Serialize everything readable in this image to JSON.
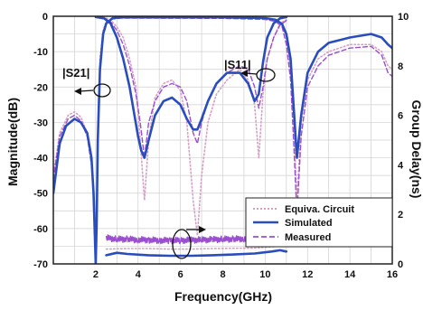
{
  "chart_data": {
    "type": "line",
    "xlabel": "Frequency(GHz)",
    "ylabel": "Magnitude(dB)",
    "y2label": "Group Delay(ns)",
    "xlim": [
      0,
      16
    ],
    "ylim": [
      -70,
      0
    ],
    "y2lim": [
      0,
      10
    ],
    "xticks": [
      2,
      4,
      6,
      8,
      10,
      12,
      14,
      16
    ],
    "yticks": [
      0,
      -10,
      -20,
      -30,
      -40,
      -50,
      -60,
      -70
    ],
    "y2ticks": [
      0,
      2,
      4,
      6,
      8,
      10
    ],
    "grid": true,
    "legend_position": "bottom-right",
    "annotations": [
      "|S21|",
      "|S11|"
    ],
    "series": [
      {
        "name": "Equiva. Circuit",
        "axis": "left",
        "curve": "S21",
        "color": "#d6a0c4",
        "dash": "dot",
        "x": [
          0,
          0.3,
          0.7,
          1.0,
          1.3,
          1.6,
          1.8,
          1.9,
          1.95,
          2.0,
          2.05,
          2.1,
          2.2,
          2.35,
          2.5,
          2.8,
          3.2,
          8,
          10,
          10.5,
          10.8,
          11.0,
          11.2,
          11.35,
          11.5,
          11.7,
          12.0,
          12.5,
          13,
          14,
          15,
          15.5,
          15.8,
          16
        ],
        "y": [
          -45,
          -33,
          -28,
          -27,
          -28.5,
          -33,
          -40,
          -48,
          -58,
          -70,
          -55,
          -32,
          -12,
          -4,
          -1.5,
          -0.5,
          -0.3,
          -0.3,
          -0.5,
          -1.0,
          -2.5,
          -6,
          -15,
          -30,
          -52,
          -30,
          -18,
          -12,
          -10,
          -8,
          -8,
          -10,
          -14,
          -15
        ]
      },
      {
        "name": "Simulated",
        "axis": "left",
        "curve": "S21",
        "color": "#2a4dbd",
        "dash": "solid",
        "x": [
          0,
          0.3,
          0.6,
          1.0,
          1.3,
          1.6,
          1.8,
          1.9,
          1.95,
          2.0,
          2.05,
          2.1,
          2.2,
          2.35,
          2.5,
          2.8,
          3.2,
          8,
          10,
          10.5,
          10.8,
          11.0,
          11.2,
          11.35,
          11.5,
          11.7,
          12.0,
          12.5,
          13,
          14,
          15,
          15.5,
          15.8,
          16
        ],
        "y": [
          -50,
          -36,
          -31,
          -29,
          -30,
          -33,
          -40,
          -50,
          -60,
          -70,
          -58,
          -35,
          -15,
          -5,
          -2,
          -0.5,
          -0.3,
          -0.3,
          -0.5,
          -1.0,
          -2.2,
          -5,
          -12,
          -26,
          -40,
          -28,
          -16,
          -10,
          -7.5,
          -6,
          -5,
          -6,
          -8,
          -9
        ]
      },
      {
        "name": "Measured",
        "axis": "left",
        "curve": "S21",
        "color": "#9b4fd0",
        "dash": "dash",
        "x": [
          0,
          0.3,
          0.7,
          1.0,
          1.3,
          1.6,
          1.8,
          1.9,
          1.95,
          2.0,
          2.05,
          2.1,
          2.2,
          2.35,
          2.5,
          2.8,
          3.2,
          8,
          10,
          10.5,
          10.8,
          11.0,
          11.2,
          11.35,
          11.5,
          11.7,
          12.0,
          12.5,
          13,
          14,
          15,
          15.5,
          15.8,
          16
        ],
        "y": [
          -46,
          -34,
          -29,
          -28,
          -29.5,
          -34,
          -42,
          -52,
          -62,
          -70,
          -58,
          -34,
          -14,
          -5,
          -2,
          -0.8,
          -0.5,
          -0.6,
          -0.9,
          -1.5,
          -3,
          -8,
          -18,
          -36,
          -56,
          -34,
          -20,
          -14,
          -11,
          -9,
          -8.5,
          -11,
          -16,
          -17
        ]
      },
      {
        "name": "Equiva. Circuit",
        "axis": "left",
        "curve": "S11",
        "color": "#d6a0c4",
        "dash": "dot",
        "x": [
          2.0,
          2.4,
          2.7,
          3.0,
          3.3,
          3.6,
          3.9,
          4.1,
          4.3,
          4.5,
          4.8,
          5.2,
          5.6,
          6.0,
          6.3,
          6.6,
          6.8,
          7.0,
          7.3,
          7.7,
          8.2,
          8.8,
          9.2,
          9.5,
          9.7,
          9.9,
          10.1,
          10.4,
          10.7,
          11.0
        ],
        "y": [
          -0.1,
          -0.3,
          -1,
          -3,
          -6,
          -12,
          -20,
          -35,
          -52,
          -35,
          -23,
          -19,
          -18,
          -21,
          -30,
          -52,
          -62,
          -45,
          -30,
          -22,
          -18,
          -15,
          -18,
          -25,
          -40,
          -22,
          -12,
          -6,
          -2,
          -1
        ]
      },
      {
        "name": "Simulated",
        "axis": "left",
        "curve": "S11",
        "color": "#2a4dbd",
        "dash": "solid",
        "x": [
          2.0,
          2.4,
          2.7,
          3.0,
          3.3,
          3.6,
          3.8,
          4.0,
          4.15,
          4.3,
          4.5,
          4.8,
          5.2,
          5.6,
          6.0,
          6.3,
          6.6,
          6.8,
          7.0,
          7.3,
          7.7,
          8.2,
          8.8,
          9.2,
          9.5,
          9.7,
          9.9,
          10.1,
          10.4,
          10.7,
          11.0
        ],
        "y": [
          -0.2,
          -0.6,
          -2,
          -6,
          -12,
          -20,
          -27,
          -34,
          -38,
          -40,
          -35,
          -28,
          -24,
          -23,
          -25,
          -29,
          -32,
          -32,
          -29,
          -24,
          -19,
          -16,
          -16,
          -19,
          -24,
          -22,
          -13,
          -6,
          -2,
          -0.6,
          -0.2
        ]
      },
      {
        "name": "Measured",
        "axis": "left",
        "curve": "S11",
        "color": "#9b4fd0",
        "dash": "dash",
        "x": [
          2.0,
          2.4,
          2.7,
          3.0,
          3.3,
          3.6,
          3.9,
          4.1,
          4.3,
          4.5,
          4.8,
          5.2,
          5.6,
          6.0,
          6.3,
          6.6,
          6.8,
          7.0,
          7.3,
          7.7,
          8.2,
          8.8,
          9.2,
          9.5,
          9.7,
          9.9,
          10.1,
          10.4,
          10.7,
          11.0
        ],
        "y": [
          -0.2,
          -0.5,
          -1.5,
          -4,
          -8,
          -14,
          -22,
          -30,
          -40,
          -30,
          -24,
          -20,
          -19,
          -20,
          -24,
          -33,
          -36,
          -30,
          -24,
          -19,
          -16,
          -14,
          -15,
          -20,
          -26,
          -20,
          -12,
          -6,
          -2.5,
          -1.2
        ]
      },
      {
        "name": "Equiva. Circuit",
        "axis": "right",
        "curve": "Group Delay",
        "color": "#d6a0c4",
        "dash": "dot",
        "x": [
          2.5,
          3.5,
          4.5,
          5.5,
          6.5,
          7.5,
          8.5,
          9.5,
          10.5,
          11.0
        ],
        "y": [
          0.6,
          0.62,
          0.62,
          0.6,
          0.6,
          0.62,
          0.63,
          0.64,
          0.7,
          0.75
        ]
      },
      {
        "name": "Simulated",
        "axis": "right",
        "curve": "Group Delay",
        "color": "#2a4dbd",
        "dash": "solid",
        "x": [
          2.5,
          3.0,
          3.5,
          4.5,
          5.5,
          6.5,
          7.5,
          8.5,
          9.5,
          10.3,
          10.7,
          11.0
        ],
        "y": [
          0.35,
          0.45,
          0.4,
          0.35,
          0.33,
          0.33,
          0.35,
          0.38,
          0.42,
          0.5,
          0.55,
          0.5
        ]
      },
      {
        "name": "Measured",
        "axis": "right",
        "curve": "Group Delay",
        "color": "#9b4fd0",
        "dash": "noisy",
        "x": [
          2.5,
          3.0,
          3.5,
          4.0,
          4.5,
          5.0,
          5.5,
          6.0,
          6.5,
          7.0,
          7.5,
          8.0,
          8.5,
          9.0,
          9.5,
          10.0,
          10.5,
          11.0
        ],
        "y": [
          1.05,
          1.0,
          1.0,
          0.98,
          0.97,
          0.95,
          0.95,
          0.95,
          0.96,
          0.97,
          0.98,
          1.0,
          1.0,
          1.02,
          1.03,
          1.05,
          1.08,
          1.1
        ]
      }
    ],
    "legend": [
      "Equiva. Circuit",
      "Simulated",
      "Measured"
    ],
    "colors": {
      "simulated": "#2a4dbd",
      "measured": "#9b4fd0",
      "circuit": "#d6a0c4",
      "grid": "#cfcfcf"
    }
  }
}
